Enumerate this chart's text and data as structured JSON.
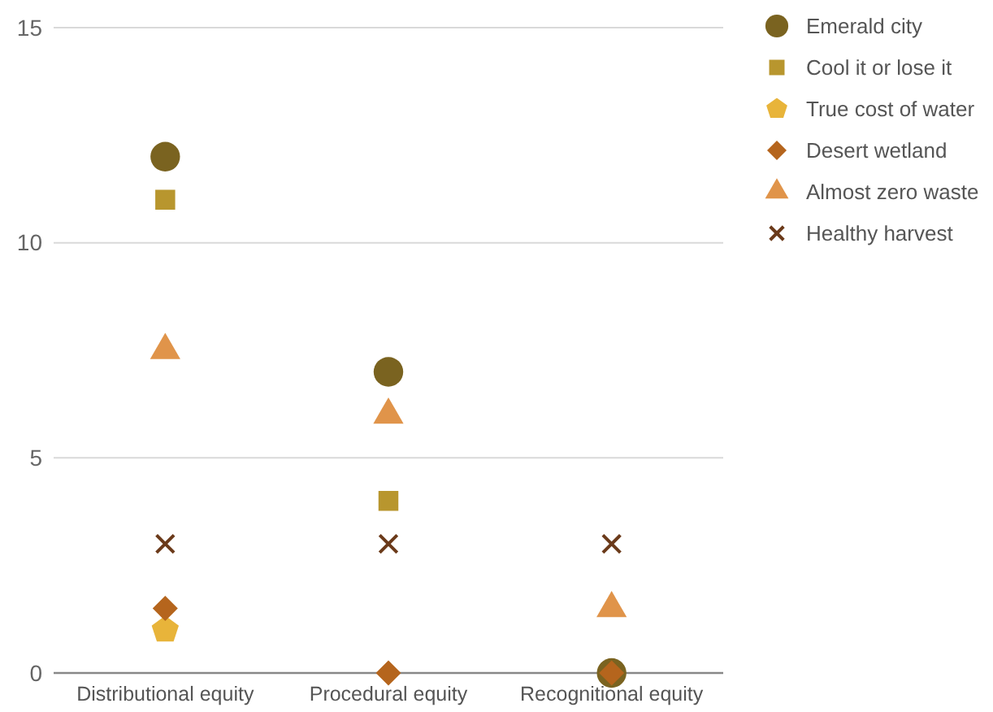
{
  "chart_data": {
    "type": "scatter",
    "categories": [
      "Distributional equity",
      "Procedural equity",
      "Recognitional equity"
    ],
    "series": [
      {
        "name": "Emerald city",
        "color": "#7a6320",
        "marker": "circle",
        "values": [
          12,
          7,
          0
        ]
      },
      {
        "name": "Cool it or lose it",
        "color": "#b8962e",
        "marker": "square",
        "values": [
          11,
          4,
          null
        ]
      },
      {
        "name": "True cost of water",
        "color": "#e8b43a",
        "values": [
          1,
          null,
          null
        ]
      },
      {
        "name": "Desert wetland",
        "color": "#b5651d",
        "marker": "diamond",
        "values": [
          1.5,
          0,
          0
        ]
      },
      {
        "name": "Almost zero waste",
        "color": "#e0944a",
        "marker": "triangle",
        "values": [
          7.5,
          6,
          1.5
        ]
      },
      {
        "name": "Healthy harvest",
        "color": "#6b3a1a",
        "marker": "cross",
        "values": [
          3,
          3,
          3
        ]
      }
    ],
    "ylim": [
      0,
      15
    ],
    "yticks": [
      0,
      5,
      10,
      15
    ],
    "grid": "y",
    "legend": "right"
  }
}
